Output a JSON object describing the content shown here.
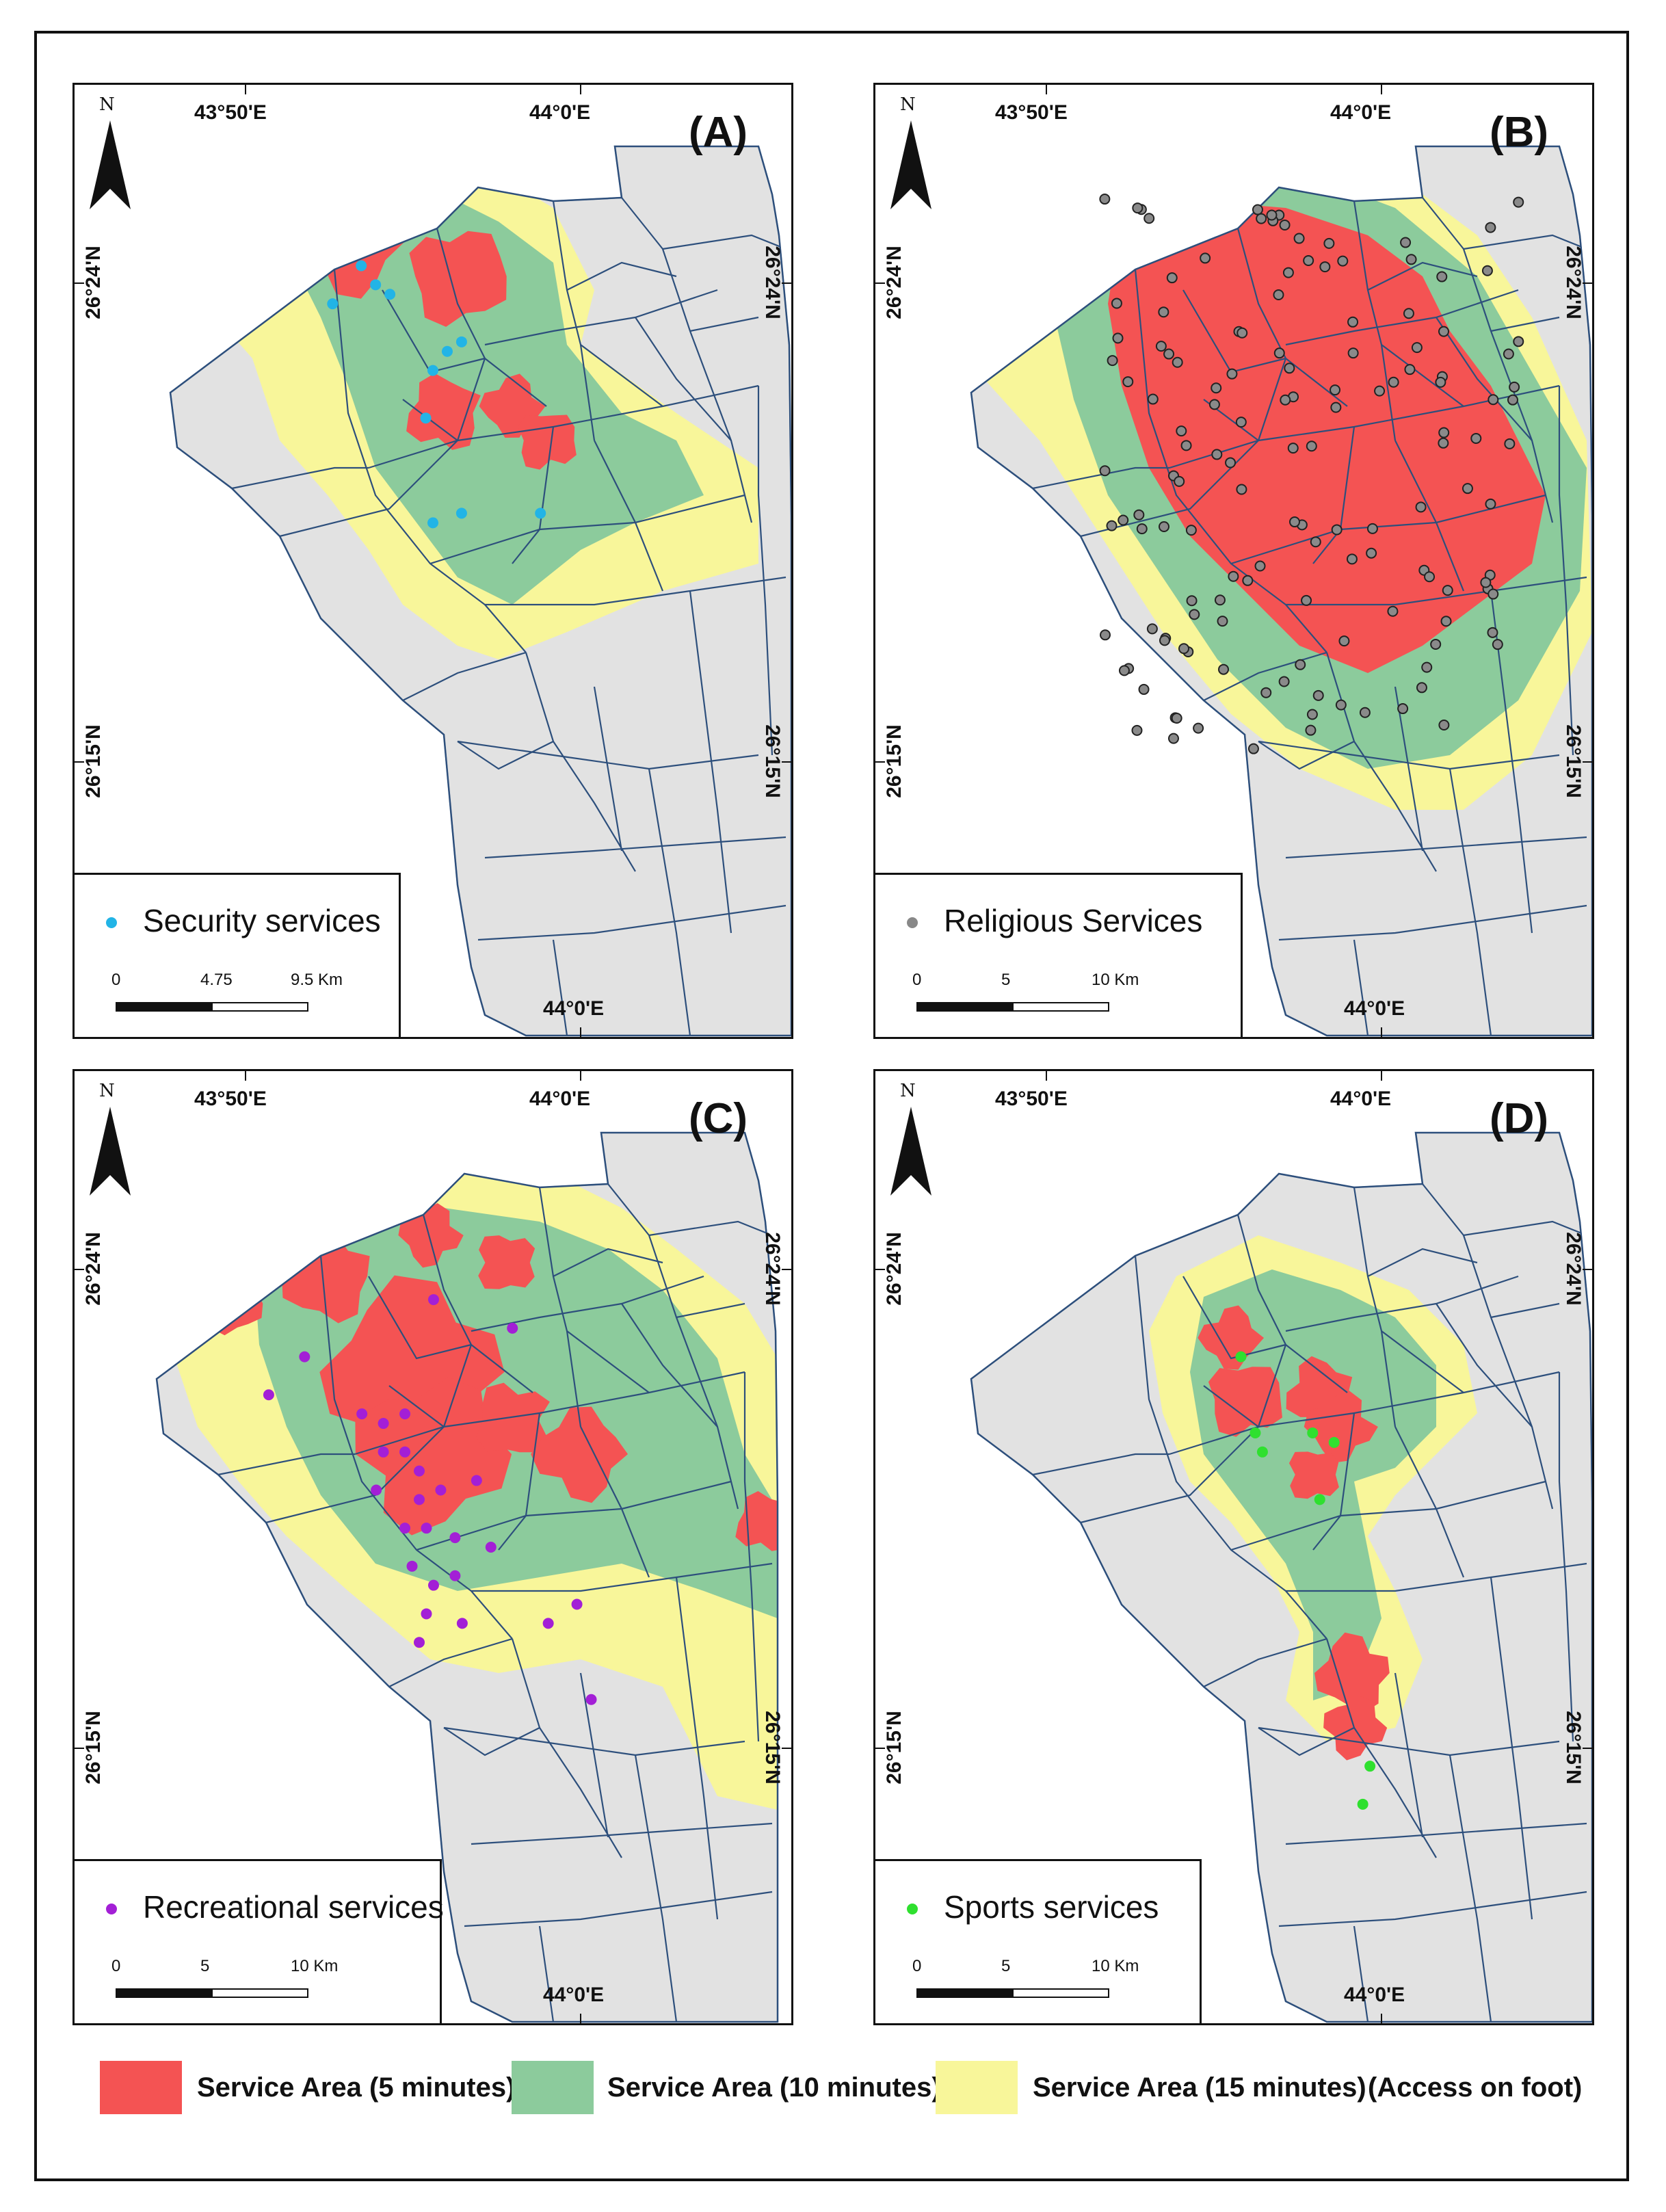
{
  "panels": [
    {
      "id": "A",
      "label": "(A)",
      "lon_labels": [
        "43°50'E",
        "44°0'E"
      ],
      "lon_bottom": "",
      "lat_labels": [
        "26°24'N",
        "26°15'N"
      ],
      "north": "N",
      "legend": {
        "label": "Security services",
        "color": "#22b4e6",
        "ticks": [
          "0",
          "4.75",
          "9.5 Km"
        ]
      },
      "points": [
        [
          0.36,
          0.23
        ],
        [
          0.4,
          0.19
        ],
        [
          0.42,
          0.21
        ],
        [
          0.44,
          0.22
        ],
        [
          0.5,
          0.3
        ],
        [
          0.52,
          0.28
        ],
        [
          0.54,
          0.27
        ],
        [
          0.49,
          0.35
        ],
        [
          0.5,
          0.46
        ],
        [
          0.54,
          0.45
        ],
        [
          0.65,
          0.45
        ]
      ]
    },
    {
      "id": "B",
      "label": "(B)",
      "lon_labels": [
        "43°50'E",
        "44°0'E"
      ],
      "lon_bottom": "44°0'E",
      "lat_labels": [
        "26°24'N",
        "26°15'N"
      ],
      "north": "N",
      "legend": {
        "label": "Religious Services",
        "color": "#888888",
        "ticks": [
          "0",
          "5",
          "10 Km"
        ]
      },
      "points": []
    },
    {
      "id": "C",
      "label": "(C)",
      "lon_labels": [
        "43°50'E",
        "44°0'E"
      ],
      "lon_bottom": "44°0'E",
      "lat_labels": [
        "26°24'N",
        "26°15'N"
      ],
      "north": "N",
      "legend": {
        "label": "Recreational services",
        "color": "#a31fd6",
        "ticks": [
          "0",
          "5",
          "10 Km"
        ]
      },
      "points": [
        [
          0.34,
          0.3
        ],
        [
          0.52,
          0.24
        ],
        [
          0.63,
          0.27
        ],
        [
          0.42,
          0.36
        ],
        [
          0.45,
          0.37
        ],
        [
          0.48,
          0.36
        ],
        [
          0.45,
          0.4
        ],
        [
          0.48,
          0.4
        ],
        [
          0.5,
          0.42
        ],
        [
          0.44,
          0.44
        ],
        [
          0.5,
          0.45
        ],
        [
          0.53,
          0.44
        ],
        [
          0.58,
          0.43
        ],
        [
          0.48,
          0.48
        ],
        [
          0.51,
          0.48
        ],
        [
          0.55,
          0.49
        ],
        [
          0.49,
          0.52
        ],
        [
          0.52,
          0.54
        ],
        [
          0.55,
          0.53
        ],
        [
          0.51,
          0.57
        ],
        [
          0.56,
          0.58
        ],
        [
          0.6,
          0.5
        ],
        [
          0.5,
          0.6
        ],
        [
          0.68,
          0.58
        ],
        [
          0.72,
          0.56
        ],
        [
          0.74,
          0.66
        ],
        [
          0.29,
          0.34
        ]
      ]
    },
    {
      "id": "D",
      "label": "(D)",
      "lon_labels": [
        "43°50'E",
        "44°0'E"
      ],
      "lon_bottom": "44°0'E",
      "lat_labels": [
        "26°24'N",
        "26°15'N"
      ],
      "north": "N",
      "legend": {
        "label": "Sports services",
        "color": "#2fe02f",
        "ticks": [
          "0",
          "5",
          "10 Km"
        ]
      },
      "points": [
        [
          0.51,
          0.3
        ],
        [
          0.53,
          0.38
        ],
        [
          0.54,
          0.4
        ],
        [
          0.61,
          0.38
        ],
        [
          0.64,
          0.39
        ],
        [
          0.62,
          0.45
        ],
        [
          0.69,
          0.73
        ],
        [
          0.68,
          0.77
        ]
      ]
    }
  ],
  "lon_bottom_A": "44°0'E",
  "legend": {
    "items": [
      {
        "label": "Service Area (5 minutes)",
        "color": "#f45353"
      },
      {
        "label": "Service Area (10 minutes)",
        "color": "#8ccb9c"
      },
      {
        "label": "Service Area (15 minutes)",
        "color": "#f8f69a"
      }
    ],
    "note": "(Access on foot)"
  },
  "colors": {
    "land": "#e2e2e2",
    "roads": "#2d4f7c",
    "walk5": "#f45353",
    "walk10": "#8ccb9c",
    "walk15": "#f8f69a"
  }
}
